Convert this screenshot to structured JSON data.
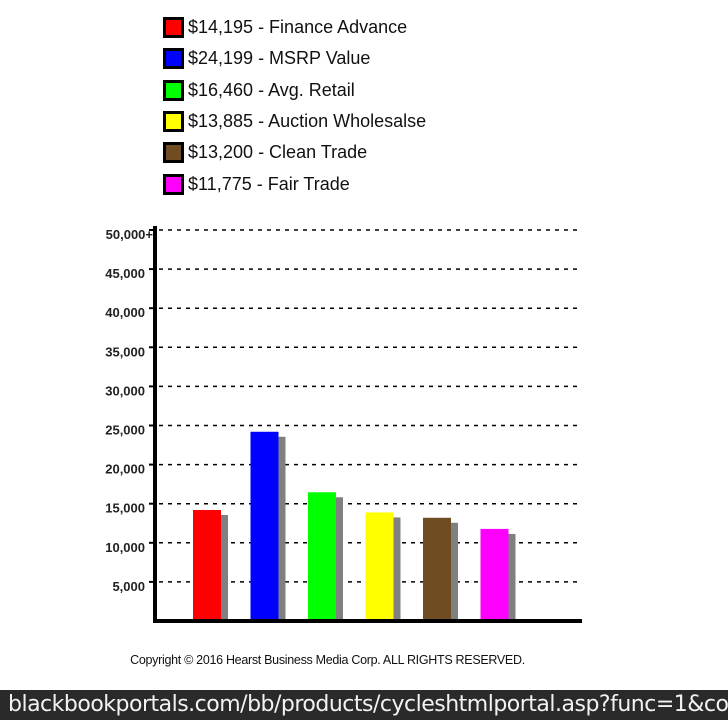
{
  "chart_data": {
    "type": "bar",
    "categories": [
      "Finance Advance",
      "MSRP Value",
      "Avg. Retail",
      "Auction Wholesalse",
      "Clean Trade",
      "Fair Trade"
    ],
    "values": [
      14195,
      24199,
      16460,
      13885,
      13200,
      11775
    ],
    "colors": [
      "#ff0000",
      "#0000ff",
      "#00ff00",
      "#ffff00",
      "#704c22",
      "#ff00ff"
    ],
    "legend": [
      {
        "label": "$14,195 - Finance Advance",
        "color": "#ff0000"
      },
      {
        "label": "$24,199 - MSRP Value",
        "color": "#0000ff"
      },
      {
        "label": "$16,460 - Avg. Retail",
        "color": "#00ff00"
      },
      {
        "label": "$13,885 - Auction Wholesalse",
        "color": "#ffff00"
      },
      {
        "label": "$13,200 - Clean Trade",
        "color": "#704c22"
      },
      {
        "label": "$11,775 - Fair Trade",
        "color": "#ff00ff"
      }
    ],
    "legend_position": "top",
    "yticks": [
      5000,
      10000,
      15000,
      20000,
      25000,
      30000,
      35000,
      40000,
      45000,
      50000
    ],
    "ytick_labels": [
      "5,000",
      "10,000",
      "15,000",
      "20,000",
      "25,000",
      "30,000",
      "35,000",
      "40,000",
      "45,000",
      "50,000+"
    ],
    "ylim": [
      0,
      50000
    ],
    "grid": "dashed horizontal",
    "shadow_color": "#808080"
  },
  "footer": {
    "copyright": "Copyright © 2016 Hearst Business Media Corp. ALL RIGHTS RESERVED.",
    "url": "blackbookportals.com/bb/products/cycleshtmlportal.asp?func=1&co"
  }
}
